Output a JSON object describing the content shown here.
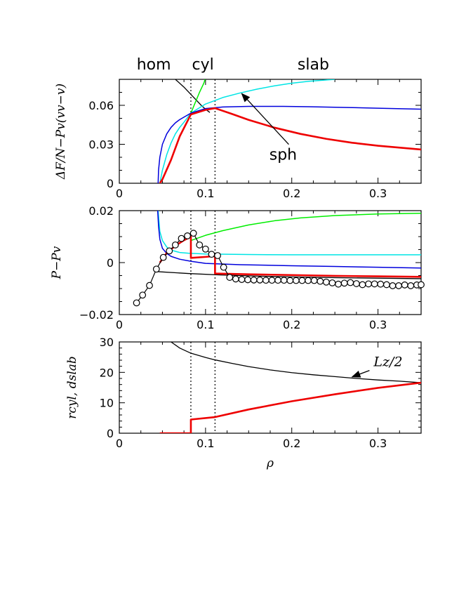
{
  "chart_data": [
    {
      "type": "line",
      "panel": "top",
      "ylabel": "ΔF/N−Pv(vv−v)",
      "xlim": [
        0,
        0.35
      ],
      "ylim": [
        0,
        0.08
      ],
      "x_ticks": [
        {
          "v": 0,
          "label": "0"
        },
        {
          "v": 0.1,
          "label": "0.1"
        },
        {
          "v": 0.2,
          "label": "0.2"
        },
        {
          "v": 0.3,
          "label": "0.3"
        }
      ],
      "y_ticks": [
        {
          "v": 0,
          "label": "0"
        },
        {
          "v": 0.03,
          "label": "0.03"
        },
        {
          "v": 0.06,
          "label": "0.06"
        }
      ],
      "vlines": [
        0.083,
        0.111
      ],
      "phase_labels": [
        {
          "text": "hom",
          "x": 0.04
        },
        {
          "text": "cyl",
          "x": 0.097
        },
        {
          "text": "slab",
          "x": 0.225
        }
      ],
      "annotation": {
        "text": "sph",
        "tip": [
          0.142,
          0.069
        ],
        "text_at": [
          0.19,
          0.018
        ]
      },
      "series": [
        {
          "color": "#000000",
          "x": [
            0.065,
            0.075,
            0.085,
            0.095,
            0.1,
            0.105
          ],
          "y": [
            0.08,
            0.074,
            0.067,
            0.06,
            0.057,
            0.0545
          ]
        },
        {
          "color": "#00ee00",
          "x": [
            0.083,
            0.088,
            0.093,
            0.098,
            0.1
          ],
          "y": [
            0.054,
            0.062,
            0.07,
            0.077,
            0.081
          ]
        },
        {
          "color": "#00e5e5",
          "x": [
            0.047,
            0.05,
            0.055,
            0.06,
            0.065,
            0.07,
            0.075,
            0.083,
            0.1,
            0.12,
            0.14,
            0.16,
            0.18,
            0.2,
            0.22,
            0.25
          ],
          "y": [
            0.0,
            0.01,
            0.022,
            0.031,
            0.038,
            0.043,
            0.047,
            0.054,
            0.061,
            0.066,
            0.0695,
            0.0725,
            0.075,
            0.077,
            0.0785,
            0.08
          ]
        },
        {
          "color": "#0000dd",
          "x": [
            0.045,
            0.0455,
            0.047,
            0.05,
            0.055,
            0.06,
            0.065,
            0.07,
            0.083,
            0.1,
            0.12,
            0.15,
            0.19,
            0.22,
            0.26,
            0.3,
            0.35
          ],
          "y": [
            0.0,
            0.01,
            0.02,
            0.03,
            0.038,
            0.043,
            0.0465,
            0.049,
            0.054,
            0.0575,
            0.0587,
            0.0592,
            0.0592,
            0.0589,
            0.0584,
            0.0578,
            0.057
          ]
        },
        {
          "color": "#ee0000",
          "x": [
            0.047,
            0.05,
            0.06,
            0.07,
            0.083,
            0.1,
            0.111,
            0.13,
            0.15,
            0.18,
            0.21,
            0.24,
            0.27,
            0.3,
            0.35
          ],
          "y": [
            0.0,
            0.003,
            0.018,
            0.036,
            0.053,
            0.0565,
            0.0578,
            0.0535,
            0.0488,
            0.0428,
            0.038,
            0.0342,
            0.0312,
            0.0289,
            0.026
          ]
        }
      ]
    },
    {
      "type": "line",
      "panel": "middle",
      "ylabel": "P−Pv",
      "xlim": [
        0,
        0.35
      ],
      "ylim": [
        -0.02,
        0.02
      ],
      "x_ticks": [
        {
          "v": 0,
          "label": "0"
        },
        {
          "v": 0.1,
          "label": "0.1"
        },
        {
          "v": 0.2,
          "label": "0.2"
        },
        {
          "v": 0.3,
          "label": "0.3"
        }
      ],
      "y_ticks": [
        {
          "v": -0.02,
          "label": "−0.02"
        },
        {
          "v": 0,
          "label": "0"
        },
        {
          "v": 0.02,
          "label": "0.02"
        }
      ],
      "vlines": [
        0.083,
        0.111
      ],
      "series": [
        {
          "color": "#00ee00",
          "x": [
            0.083,
            0.1,
            0.12,
            0.15,
            0.18,
            0.21,
            0.25,
            0.3,
            0.35
          ],
          "y": [
            0.0085,
            0.0105,
            0.0123,
            0.0145,
            0.0161,
            0.0172,
            0.0181,
            0.0187,
            0.019
          ]
        },
        {
          "color": "#00e5e5",
          "x": [
            0.045,
            0.047,
            0.05,
            0.055,
            0.06,
            0.07,
            0.08,
            0.1,
            0.15,
            0.2,
            0.25,
            0.3,
            0.35
          ],
          "y": [
            0.02,
            0.012,
            0.0085,
            0.006,
            0.0048,
            0.0039,
            0.0036,
            0.0033,
            0.0031,
            0.003,
            0.003,
            0.003,
            0.003
          ]
        },
        {
          "color": "#0000dd",
          "x": [
            0.0445,
            0.0455,
            0.047,
            0.05,
            0.055,
            0.06,
            0.07,
            0.083,
            0.1,
            0.14,
            0.2,
            0.25,
            0.3,
            0.35
          ],
          "y": [
            0.02,
            0.014,
            0.009,
            0.0055,
            0.0035,
            0.0024,
            0.0013,
            0.0005,
            -0.0003,
            -0.0008,
            -0.0012,
            -0.0015,
            -0.0018,
            -0.0021
          ]
        },
        {
          "color": "#000000",
          "x": [
            0.045,
            0.08,
            0.12,
            0.16,
            0.2,
            0.25,
            0.3,
            0.35
          ],
          "y": [
            -0.0035,
            -0.0042,
            -0.0048,
            -0.0052,
            -0.0055,
            -0.0058,
            -0.006,
            -0.0062
          ]
        },
        {
          "color": "#ee0000",
          "x": [
            0.047,
            0.055,
            0.065,
            0.075,
            0.083,
            0.083,
            0.1,
            0.111,
            0.111,
            0.15,
            0.2,
            0.25,
            0.3,
            0.35
          ],
          "y": [
            0.0,
            0.0037,
            0.0065,
            0.0086,
            0.01,
            0.0018,
            0.0022,
            0.0025,
            -0.0042,
            -0.0045,
            -0.0048,
            -0.0051,
            -0.0053,
            -0.0055
          ]
        },
        {
          "color": "#000000",
          "markers": true,
          "x": [
            0.02,
            0.027,
            0.035,
            0.043,
            0.051,
            0.058,
            0.065,
            0.072,
            0.079,
            0.086,
            0.093,
            0.1,
            0.107,
            0.114,
            0.121,
            0.128,
            0.135,
            0.142,
            0.149,
            0.156,
            0.163,
            0.17,
            0.177,
            0.184,
            0.191,
            0.198,
            0.205,
            0.212,
            0.219,
            0.226,
            0.233,
            0.24,
            0.247,
            0.254,
            0.261,
            0.268,
            0.275,
            0.282,
            0.289,
            0.296,
            0.303,
            0.31,
            0.317,
            0.324,
            0.331,
            0.338,
            0.345,
            0.35
          ],
          "y": [
            -0.0155,
            -0.0125,
            -0.0088,
            -0.0025,
            0.002,
            0.0045,
            0.0068,
            0.0093,
            0.0103,
            0.0113,
            0.0068,
            0.0052,
            0.0032,
            0.0027,
            -0.0018,
            -0.0057,
            -0.0063,
            -0.0065,
            -0.0066,
            -0.0067,
            -0.0067,
            -0.0068,
            -0.0068,
            -0.0068,
            -0.0068,
            -0.0069,
            -0.0069,
            -0.0069,
            -0.0069,
            -0.0069,
            -0.0072,
            -0.0075,
            -0.0078,
            -0.0083,
            -0.0079,
            -0.0077,
            -0.0081,
            -0.0085,
            -0.0082,
            -0.0082,
            -0.0083,
            -0.0085,
            -0.0089,
            -0.0089,
            -0.0086,
            -0.0089,
            -0.0086,
            -0.0085
          ]
        }
      ]
    },
    {
      "type": "line",
      "panel": "bottom",
      "ylabel": "rcyl, dslab",
      "xlabel": "ρ",
      "xlim": [
        0,
        0.35
      ],
      "ylim": [
        0,
        30
      ],
      "x_ticks": [
        {
          "v": 0,
          "label": "0"
        },
        {
          "v": 0.1,
          "label": "0.1"
        },
        {
          "v": 0.2,
          "label": "0.2"
        },
        {
          "v": 0.3,
          "label": "0.3"
        }
      ],
      "y_ticks": [
        {
          "v": 0,
          "label": "0"
        },
        {
          "v": 10,
          "label": "10"
        },
        {
          "v": 20,
          "label": "20"
        },
        {
          "v": 30,
          "label": "30"
        }
      ],
      "vlines": [
        0.083,
        0.111
      ],
      "annotation": {
        "text": "Lz/2",
        "tip": [
          0.27,
          18.5
        ],
        "text_at": [
          0.295,
          22.0
        ]
      },
      "series": [
        {
          "color": "#000000",
          "x": [
            0.06,
            0.07,
            0.083,
            0.1,
            0.111,
            0.13,
            0.15,
            0.175,
            0.2,
            0.225,
            0.25,
            0.275,
            0.3,
            0.325,
            0.35
          ],
          "y": [
            30.0,
            28.0,
            26.3,
            24.9,
            24.1,
            23.0,
            21.9,
            20.8,
            19.9,
            19.2,
            18.6,
            18.0,
            17.5,
            17.1,
            16.6
          ]
        },
        {
          "color": "#ee0000",
          "x": [
            0.047,
            0.083,
            0.083,
            0.111,
            0.15,
            0.2,
            0.25,
            0.3,
            0.35
          ],
          "y": [
            0.0,
            0.0,
            4.5,
            5.3,
            7.8,
            10.5,
            12.8,
            14.9,
            16.6
          ]
        }
      ]
    }
  ]
}
